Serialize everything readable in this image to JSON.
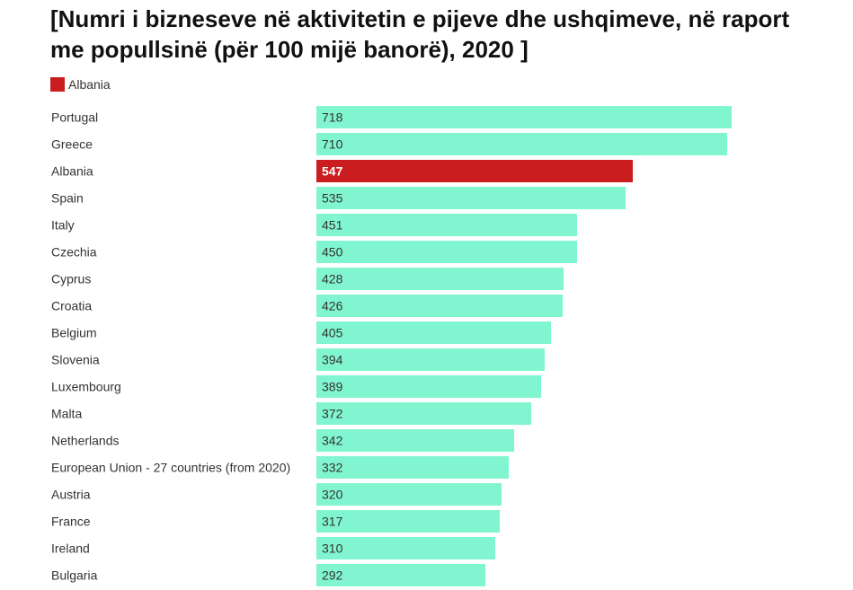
{
  "title": "[Numri i bizneseve në aktivitetin e pijeve dhe ushqimeve, në raport me popullsinë (për 100 mijë banorë), 2020 ]",
  "legend": {
    "label": "Albania",
    "color": "#c91d1f"
  },
  "colors": {
    "bar": "#80f5cf",
    "highlight": "#c91d1f"
  },
  "chart_data": {
    "type": "bar",
    "orientation": "horizontal",
    "title": "[Numri i bizneseve në aktivitetin e pijeve dhe ushqimeve, në raport me popullsinë (për 100 mijë banorë), 2020 ]",
    "categories": [
      "Portugal",
      "Greece",
      "Albania",
      "Spain",
      "Italy",
      "Czechia",
      "Cyprus",
      "Croatia",
      "Belgium",
      "Slovenia",
      "Luxembourg",
      "Malta",
      "Netherlands",
      "European Union - 27 countries (from 2020)",
      "Austria",
      "France",
      "Ireland",
      "Bulgaria"
    ],
    "values": [
      718,
      710,
      547,
      535,
      451,
      450,
      428,
      426,
      405,
      394,
      389,
      372,
      342,
      332,
      320,
      317,
      310,
      292
    ],
    "highlight": "Albania",
    "xlim": [
      0,
      718
    ],
    "grid": false,
    "legend_position": "top-left"
  }
}
